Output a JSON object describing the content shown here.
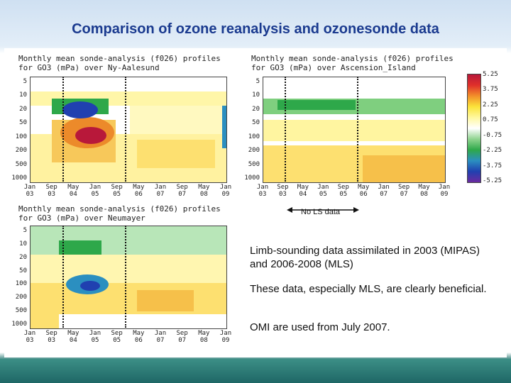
{
  "slide": {
    "title": "Comparison of ozone reanalysis and ozonesonde data"
  },
  "panels": {
    "ny": {
      "title_line1": "Monthly mean sonde-analysis (f026) profiles",
      "title_line2": "for GO3 (mPa) over Ny-Aalesund"
    },
    "ascension": {
      "title_line1": "Monthly mean sonde-analysis (f026) profiles",
      "title_line2": "for GO3 (mPa) over Ascension_Island"
    },
    "neumayer": {
      "title_line1": "Monthly mean sonde-analysis (f026) profiles",
      "title_line2": "for GO3 (mPa) over Neumayer"
    }
  },
  "axes": {
    "y_ticks": [
      "5",
      "10",
      "20",
      "50",
      "100",
      "200",
      "500",
      "1000"
    ],
    "x_ticks": [
      {
        "month": "Jan",
        "year": "03"
      },
      {
        "month": "Sep",
        "year": "03"
      },
      {
        "month": "May",
        "year": "04"
      },
      {
        "month": "Jan",
        "year": "05"
      },
      {
        "month": "Sep",
        "year": "05"
      },
      {
        "month": "May",
        "year": "06"
      },
      {
        "month": "Jan",
        "year": "07"
      },
      {
        "month": "Sep",
        "year": "07"
      },
      {
        "month": "May",
        "year": "08"
      },
      {
        "month": "Jan",
        "year": "09"
      }
    ]
  },
  "colorbar": {
    "labels": [
      "5.25",
      "3.75",
      "2.25",
      "0.75",
      "-0.75",
      "-2.25",
      "-3.75",
      "-5.25"
    ],
    "colors": [
      "#b8183a",
      "#e0302a",
      "#f2902a",
      "#fbe43a",
      "#fff8a0",
      "#ffffff",
      "#8fd38f",
      "#2ea84a",
      "#2b8fc0",
      "#2040b0",
      "#6a2aa0"
    ]
  },
  "annotation": {
    "no_ls": "No LS data"
  },
  "notes": [
    "Limb-sounding data assimilated in 2003 (MIPAS) and 2006-2008 (MLS)",
    "These data, especially MLS, are clearly beneficial.",
    "OMI are used from July 2007."
  ]
}
